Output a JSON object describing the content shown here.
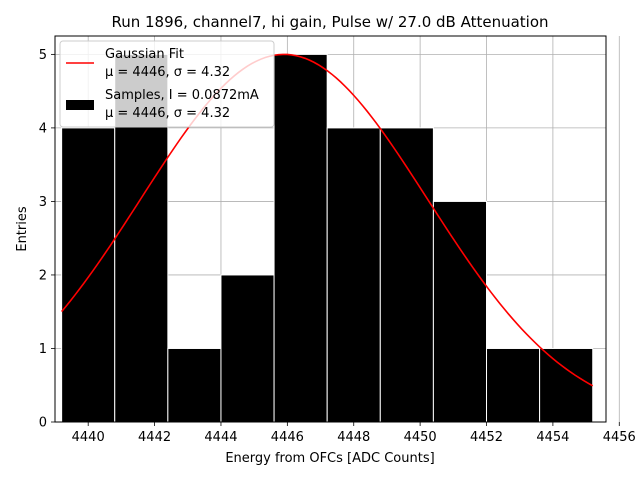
{
  "chart_data": {
    "type": "bar",
    "title": "Run 1896, channel7, hi gain, Pulse w/ 27.0 dB Attenuation",
    "xlabel": "Energy from OFCs [ADC Counts]",
    "ylabel": "Entries",
    "xlim": [
      4439.0,
      4455.6
    ],
    "ylim": [
      0,
      5.25
    ],
    "xticks": [
      "4440",
      "4442",
      "4444",
      "4446",
      "4448",
      "4450",
      "4452",
      "4454",
      "4456"
    ],
    "yticks": [
      "0",
      "1",
      "2",
      "3",
      "4",
      "5"
    ],
    "grid": true,
    "legend_position": "top-left",
    "histogram": {
      "name": "Samples, I = 0.0872mA",
      "stats": "μ = 4446, σ = 4.32",
      "bin_edges": [
        4439.2,
        4440.8,
        4442.4,
        4444.0,
        4445.6,
        4447.2,
        4448.8,
        4450.4,
        4452.0,
        4453.6,
        4455.2
      ],
      "values": [
        4,
        5,
        1,
        2,
        5,
        4,
        4,
        3,
        1,
        1
      ],
      "color": "#000000"
    },
    "fit": {
      "name": "Gaussian Fit",
      "stats": "μ = 4446, σ = 4.32",
      "mu": 4445.9,
      "sigma": 4.32,
      "amplitude": 5.0,
      "x_range": [
        4439.2,
        4455.2
      ],
      "color": "#ff0000"
    }
  }
}
